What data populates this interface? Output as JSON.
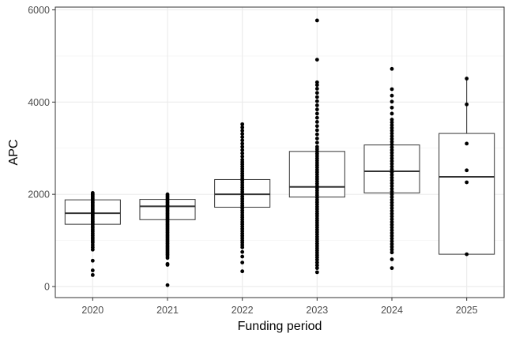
{
  "chart_data": {
    "type": "box",
    "xlabel": "Funding period",
    "ylabel": "APC",
    "categories": [
      "2020",
      "2021",
      "2022",
      "2023",
      "2024",
      "2025"
    ],
    "yticks": [
      0,
      2000,
      4000,
      6000
    ],
    "ylim": [
      -240,
      6060
    ],
    "grid": true,
    "boxes": [
      {
        "category": "2020",
        "q1": 1350,
        "median": 1590,
        "q3": 1880,
        "whisker_low": 1350,
        "whisker_high": 1880
      },
      {
        "category": "2021",
        "q1": 1450,
        "median": 1740,
        "q3": 1890,
        "whisker_low": 1450,
        "whisker_high": 1890
      },
      {
        "category": "2022",
        "q1": 1720,
        "median": 2000,
        "q3": 2320,
        "whisker_low": 1720,
        "whisker_high": 2320
      },
      {
        "category": "2023",
        "q1": 1940,
        "median": 2160,
        "q3": 2930,
        "whisker_low": 1940,
        "whisker_high": 2930
      },
      {
        "category": "2024",
        "q1": 2030,
        "median": 2500,
        "q3": 3070,
        "whisker_low": 2030,
        "whisker_high": 3070
      },
      {
        "category": "2025",
        "q1": 700,
        "median": 2380,
        "q3": 3320,
        "whisker_low": 700,
        "whisker_high": 4500
      }
    ],
    "points": [
      {
        "category": "2020",
        "values": [
          2030,
          2000,
          1970,
          1940,
          1910,
          1880,
          1850,
          1820,
          1790,
          1760,
          1730,
          1700,
          1670,
          1640,
          1610,
          1590,
          1560,
          1530,
          1500,
          1470,
          1440,
          1410,
          1380,
          1350,
          1310,
          1270,
          1230,
          1190,
          1150,
          1110,
          1070,
          1030,
          990,
          950,
          900,
          850,
          800,
          560,
          350,
          250
        ]
      },
      {
        "category": "2021",
        "values": [
          2000,
          1970,
          1940,
          1910,
          1880,
          1850,
          1820,
          1790,
          1760,
          1740,
          1710,
          1680,
          1650,
          1620,
          1590,
          1560,
          1530,
          1500,
          1470,
          1440,
          1410,
          1380,
          1350,
          1320,
          1290,
          1260,
          1230,
          1200,
          1170,
          1140,
          1110,
          1080,
          1050,
          1020,
          990,
          960,
          930,
          900,
          870,
          840,
          810,
          780,
          750,
          720,
          690,
          660,
          620,
          490,
          470,
          30
        ]
      },
      {
        "category": "2022",
        "values": [
          3520,
          3450,
          3380,
          3310,
          3240,
          3170,
          3100,
          3030,
          2960,
          2890,
          2820,
          2750,
          2700,
          2650,
          2600,
          2550,
          2500,
          2450,
          2400,
          2350,
          2300,
          2250,
          2200,
          2150,
          2100,
          2050,
          2000,
          1950,
          1900,
          1850,
          1800,
          1750,
          1700,
          1650,
          1600,
          1550,
          1500,
          1450,
          1400,
          1350,
          1300,
          1250,
          1200,
          1150,
          1100,
          1050,
          1000,
          950,
          900,
          850,
          750,
          650,
          520,
          330
        ]
      },
      {
        "category": "2023",
        "values": [
          5770,
          4920,
          4430,
          4370,
          4290,
          4200,
          4110,
          4020,
          3930,
          3840,
          3750,
          3660,
          3570,
          3480,
          3390,
          3300,
          3210,
          3120,
          3030,
          2980,
          2930,
          2880,
          2830,
          2780,
          2730,
          2680,
          2630,
          2580,
          2530,
          2480,
          2430,
          2380,
          2330,
          2280,
          2230,
          2180,
          2130,
          2080,
          2030,
          1980,
          1930,
          1880,
          1830,
          1780,
          1730,
          1680,
          1630,
          1580,
          1530,
          1480,
          1430,
          1380,
          1330,
          1280,
          1230,
          1180,
          1130,
          1080,
          1030,
          980,
          930,
          880,
          830,
          780,
          730,
          680,
          630,
          580,
          520,
          460,
          400,
          310
        ]
      },
      {
        "category": "2024",
        "values": [
          4720,
          4280,
          4140,
          4010,
          3880,
          3750,
          3620,
          3560,
          3500,
          3440,
          3380,
          3320,
          3260,
          3200,
          3140,
          3080,
          3020,
          2960,
          2900,
          2840,
          2780,
          2720,
          2660,
          2600,
          2540,
          2480,
          2420,
          2360,
          2300,
          2240,
          2180,
          2120,
          2060,
          2000,
          1940,
          1880,
          1820,
          1760,
          1700,
          1640,
          1580,
          1520,
          1460,
          1400,
          1340,
          1280,
          1220,
          1160,
          1100,
          1040,
          980,
          920,
          860,
          800,
          740,
          590,
          400
        ]
      },
      {
        "category": "2025",
        "values": [
          4510,
          3950,
          3100,
          2520,
          2260,
          700
        ]
      }
    ]
  }
}
